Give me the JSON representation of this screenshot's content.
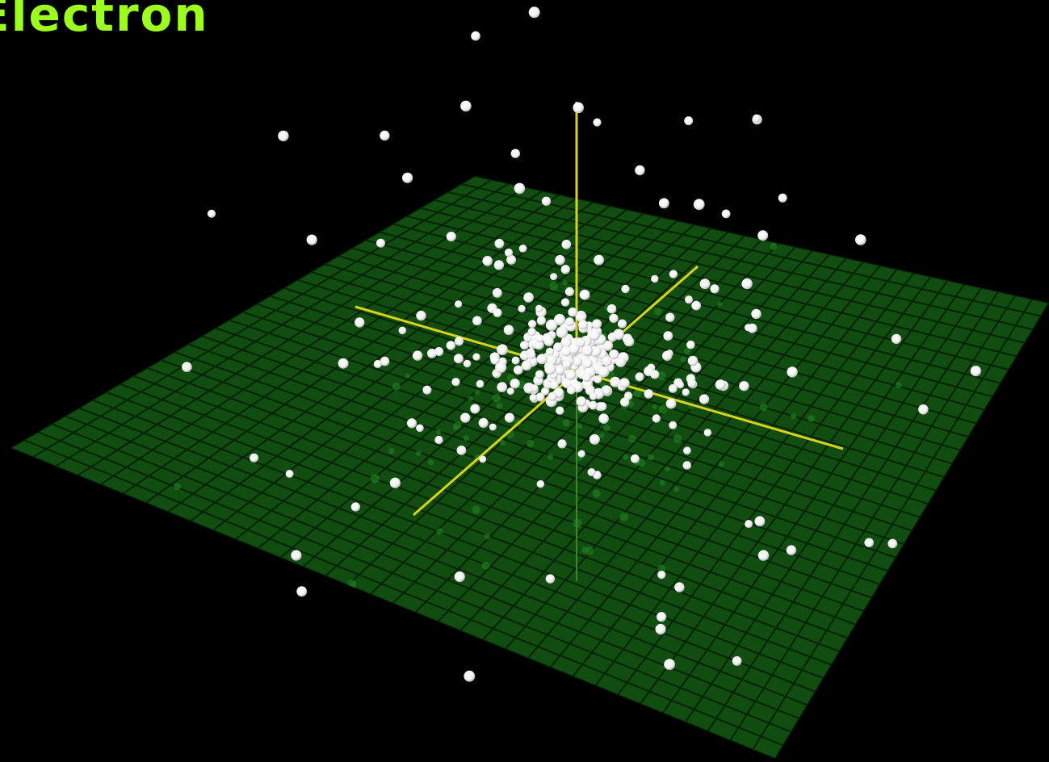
{
  "title": "Electron",
  "colors": {
    "background": "#000000",
    "plane_fill": "#114d11",
    "plane_grid": "#052605",
    "axis": "#d9d21c",
    "electron": "#ffffff",
    "electron_shadow": "#1f7a1f",
    "title": "#9cff1e"
  }
}
